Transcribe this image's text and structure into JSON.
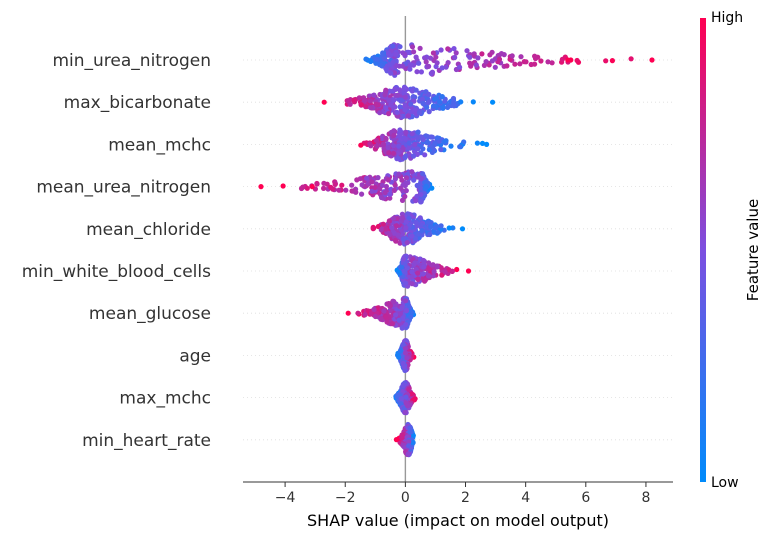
{
  "chart_data": {
    "type": "scatter",
    "subtype": "shap-beeswarm-summary",
    "title": "",
    "xlabel": "SHAP value (impact on model output)",
    "xlim": [
      -5.4,
      8.9
    ],
    "xticks": [
      -4,
      -2,
      0,
      2,
      4,
      6,
      8
    ],
    "features": [
      {
        "name": "min_urea_nitrogen",
        "min": -1.4,
        "max": 8.2,
        "center": -0.3,
        "outliers": [
          5.4,
          5.5,
          8.2
        ],
        "high_side": "right"
      },
      {
        "name": "max_bicarbonate",
        "min": -2.7,
        "max": 2.9,
        "center": -0.1,
        "outliers": [
          -2.7,
          2.9
        ],
        "high_side": "left"
      },
      {
        "name": "mean_mchc",
        "min": -1.8,
        "max": 2.7,
        "center": -0.1,
        "outliers": [
          2.7
        ],
        "high_side": "left"
      },
      {
        "name": "mean_urea_nitrogen",
        "min": -4.8,
        "max": 0.9,
        "center": 0.5,
        "outliers": [
          -4.8,
          -3.1
        ],
        "high_side": "left"
      },
      {
        "name": "mean_chloride",
        "min": -1.4,
        "max": 1.9,
        "center": 0.0,
        "outliers": [
          1.9
        ],
        "high_side": "left"
      },
      {
        "name": "min_white_blood_cells",
        "min": -0.3,
        "max": 2.1,
        "center": 0.0,
        "outliers": [
          2.1
        ],
        "high_side": "right"
      },
      {
        "name": "mean_glucose",
        "min": -1.9,
        "max": 0.3,
        "center": 0.0,
        "outliers": [
          -1.9
        ],
        "high_side": "left"
      },
      {
        "name": "age",
        "min": -0.3,
        "max": 0.3,
        "center": 0.0,
        "outliers": [],
        "high_side": "right"
      },
      {
        "name": "max_mchc",
        "min": -0.4,
        "max": 0.4,
        "center": 0.0,
        "outliers": [],
        "high_side": "right"
      },
      {
        "name": "min_heart_rate",
        "min": -0.3,
        "max": 0.3,
        "center": 0.1,
        "outliers": [],
        "high_side": "left"
      }
    ],
    "colorbar": {
      "label": "Feature value",
      "high_label": "High",
      "low_label": "Low",
      "high_color": "#ff0052",
      "low_color": "#008bfb"
    },
    "grid": false,
    "zero_line": true
  }
}
